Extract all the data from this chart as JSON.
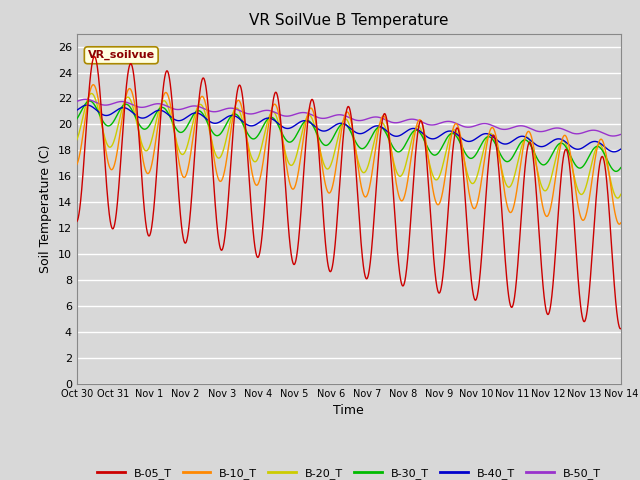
{
  "title": "VR SoilVue B Temperature",
  "xlabel": "Time",
  "ylabel": "Soil Temperature (C)",
  "ylim": [
    0,
    27
  ],
  "yticks": [
    0,
    2,
    4,
    6,
    8,
    10,
    12,
    14,
    16,
    18,
    20,
    22,
    24,
    26
  ],
  "background_color": "#d8d8d8",
  "plot_bg_color": "#d8d8d8",
  "grid_color": "#ffffff",
  "legend_label": "VR_soilvue",
  "series_colors": {
    "B-05_T": "#cc0000",
    "B-10_T": "#ff8800",
    "B-20_T": "#cccc00",
    "B-30_T": "#00bb00",
    "B-40_T": "#0000cc",
    "B-50_T": "#9933cc"
  },
  "xtick_labels": [
    "Oct 30",
    "Oct 31",
    "Nov 1",
    "Nov 2",
    "Nov 3",
    "Nov 4",
    "Nov 5",
    "Nov 6",
    "Nov 7",
    "Nov 8",
    "Nov 9",
    "Nov 10",
    "Nov 11",
    "Nov 12",
    "Nov 13",
    "Nov 14"
  ],
  "xtick_positions": [
    0,
    1,
    2,
    3,
    4,
    5,
    6,
    7,
    8,
    9,
    10,
    11,
    12,
    13,
    14,
    15
  ]
}
